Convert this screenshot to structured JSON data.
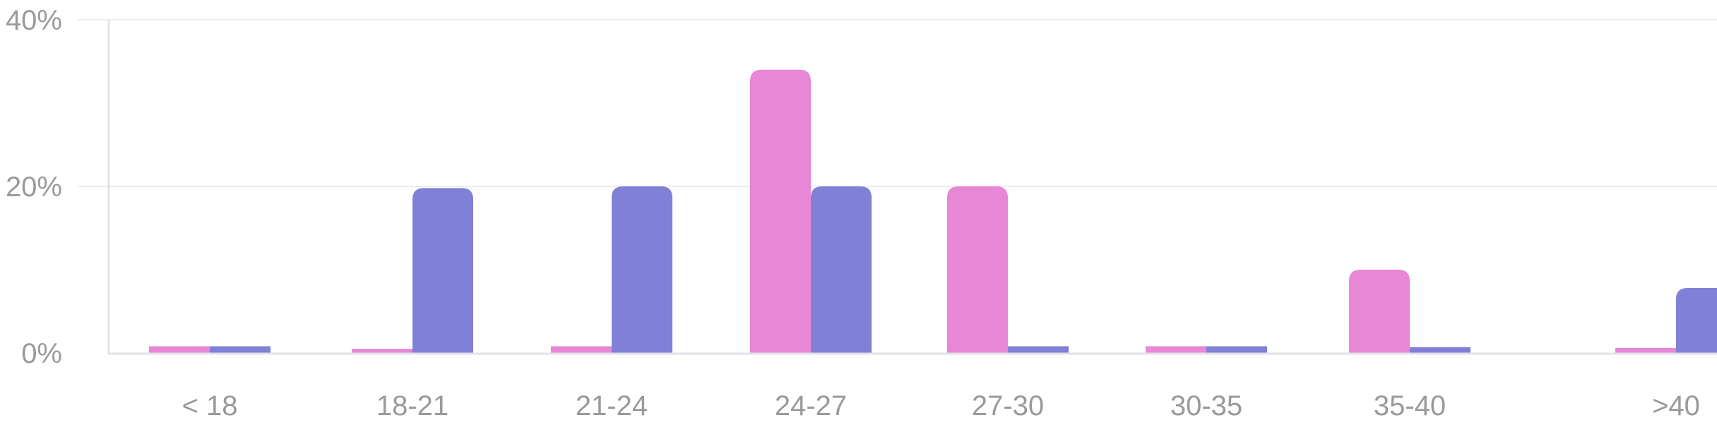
{
  "chart_data": {
    "type": "bar",
    "categories": [
      "< 18",
      "18-21",
      "21-24",
      "24-27",
      "27-30",
      "30-35",
      "35-40",
      ">40"
    ],
    "series": [
      {
        "color": "#e787d6",
        "values": [
          0.8,
          0.5,
          0.8,
          34,
          20,
          0.8,
          10,
          0.6
        ]
      },
      {
        "color": "#8080d6",
        "values": [
          0.8,
          19.8,
          20,
          20,
          0.8,
          0.8,
          0.7,
          7.8
        ]
      }
    ],
    "yticks": [
      "0%",
      "20%",
      "40%"
    ],
    "ylim": [
      0,
      40
    ],
    "grid": true,
    "xlabel": "",
    "ylabel": ""
  }
}
